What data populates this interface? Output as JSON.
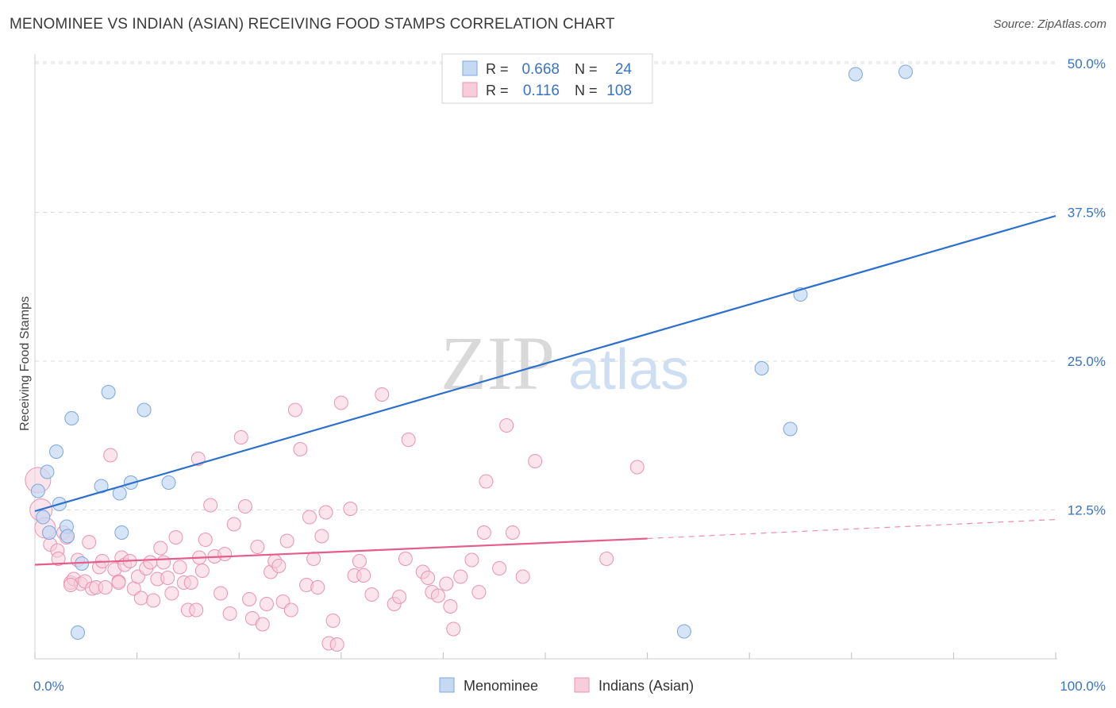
{
  "title": "MENOMINEE VS INDIAN (ASIAN) RECEIVING FOOD STAMPS CORRELATION CHART",
  "source": "Source: ZipAtlas.com",
  "watermark": {
    "zip": "ZIP",
    "atlas": "atlas"
  },
  "colors": {
    "blue_fill": "#c5d9f3",
    "blue_stroke": "#7ea6dc",
    "blue_line": "#2c6fcd",
    "pink_fill": "#f7cddb",
    "pink_stroke": "#e994b2",
    "pink_line": "#e45d8c",
    "tick_label": "#3a72c4",
    "grid": "#dcdcdc"
  },
  "legend": {
    "rows": [
      {
        "r_label": "R =",
        "r_value": "0.668",
        "n_label": "N =",
        "n_value": "24"
      },
      {
        "r_label": "R =",
        "r_value": "0.116",
        "n_label": "N =",
        "n_value": "108"
      }
    ]
  },
  "bottom_legend": [
    "Menominee",
    "Indians (Asian)"
  ],
  "chart_data": {
    "type": "scatter",
    "title": "MENOMINEE VS INDIAN (ASIAN) RECEIVING FOOD STAMPS CORRELATION CHART",
    "xlabel": "",
    "ylabel": "Receiving Food Stamps",
    "xlim": [
      0,
      100
    ],
    "ylim": [
      0,
      50
    ],
    "x_tick_labels": [
      "0.0%",
      "100.0%"
    ],
    "y_ticks": [
      12.5,
      25.0,
      37.5,
      50.0
    ],
    "y_tick_labels": [
      "12.5%",
      "25.0%",
      "37.5%",
      "50.0%"
    ],
    "grid": true,
    "legend_position": "top-center",
    "series": [
      {
        "name": "Menominee",
        "r": 0.668,
        "n": 24,
        "trend": {
          "x": [
            0,
            100
          ],
          "y": [
            12.4,
            37.2
          ],
          "dashed_after": null
        },
        "points": [
          [
            0.3,
            14.1
          ],
          [
            1.2,
            15.7
          ],
          [
            0.8,
            11.9
          ],
          [
            2.1,
            17.4
          ],
          [
            3.6,
            20.2
          ],
          [
            2.4,
            13.0
          ],
          [
            3.1,
            11.1
          ],
          [
            3.2,
            10.3
          ],
          [
            7.2,
            22.4
          ],
          [
            10.7,
            20.9
          ],
          [
            6.5,
            14.5
          ],
          [
            8.3,
            13.9
          ],
          [
            9.4,
            14.8
          ],
          [
            13.1,
            14.8
          ],
          [
            8.5,
            10.6
          ],
          [
            1.4,
            10.6
          ],
          [
            4.6,
            8.0
          ],
          [
            4.2,
            2.2
          ],
          [
            75.0,
            30.6
          ],
          [
            71.2,
            24.4
          ],
          [
            74.0,
            19.3
          ],
          [
            80.4,
            49.1
          ],
          [
            85.3,
            49.3
          ],
          [
            63.6,
            2.3
          ]
        ]
      },
      {
        "name": "Indians (Asian)",
        "r": 0.116,
        "n": 108,
        "trend": {
          "x": [
            0,
            60
          ],
          "y": [
            7.9,
            10.1
          ],
          "dashed_to": [
            100,
            11.7
          ]
        },
        "points": [
          [
            0.3,
            15.0
          ],
          [
            0.6,
            12.5
          ],
          [
            1.0,
            11.0
          ],
          [
            1.5,
            9.6
          ],
          [
            2.2,
            9.1
          ],
          [
            2.3,
            8.4
          ],
          [
            2.8,
            10.6
          ],
          [
            3.1,
            10.2
          ],
          [
            3.5,
            6.4
          ],
          [
            3.8,
            6.7
          ],
          [
            4.2,
            8.3
          ],
          [
            4.5,
            6.3
          ],
          [
            4.9,
            6.5
          ],
          [
            5.3,
            9.8
          ],
          [
            5.6,
            5.9
          ],
          [
            6.0,
            6.0
          ],
          [
            6.3,
            7.7
          ],
          [
            6.6,
            8.2
          ],
          [
            7.4,
            17.1
          ],
          [
            7.8,
            7.5
          ],
          [
            8.2,
            6.5
          ],
          [
            8.5,
            8.5
          ],
          [
            8.8,
            7.9
          ],
          [
            9.3,
            8.2
          ],
          [
            9.7,
            5.9
          ],
          [
            10.1,
            6.9
          ],
          [
            10.4,
            5.1
          ],
          [
            10.9,
            7.6
          ],
          [
            11.3,
            8.1
          ],
          [
            11.6,
            4.9
          ],
          [
            12.0,
            6.7
          ],
          [
            12.3,
            9.3
          ],
          [
            12.6,
            8.1
          ],
          [
            13.0,
            6.8
          ],
          [
            13.4,
            5.5
          ],
          [
            13.8,
            10.2
          ],
          [
            14.2,
            7.7
          ],
          [
            14.6,
            6.4
          ],
          [
            15.0,
            4.1
          ],
          [
            15.3,
            6.4
          ],
          [
            15.8,
            4.1
          ],
          [
            16.1,
            8.5
          ],
          [
            16.4,
            7.4
          ],
          [
            16.7,
            10.0
          ],
          [
            17.2,
            12.9
          ],
          [
            17.6,
            8.6
          ],
          [
            18.2,
            5.5
          ],
          [
            18.6,
            8.8
          ],
          [
            19.1,
            3.8
          ],
          [
            19.5,
            11.3
          ],
          [
            20.2,
            18.6
          ],
          [
            20.6,
            12.8
          ],
          [
            21.0,
            5.0
          ],
          [
            21.3,
            3.4
          ],
          [
            21.8,
            9.4
          ],
          [
            22.3,
            2.9
          ],
          [
            22.7,
            4.6
          ],
          [
            23.1,
            7.3
          ],
          [
            23.5,
            8.2
          ],
          [
            23.9,
            7.8
          ],
          [
            24.3,
            4.8
          ],
          [
            24.7,
            9.9
          ],
          [
            25.1,
            4.1
          ],
          [
            25.5,
            20.9
          ],
          [
            26.0,
            17.6
          ],
          [
            26.6,
            6.2
          ],
          [
            26.9,
            11.9
          ],
          [
            27.3,
            8.4
          ],
          [
            27.7,
            6.0
          ],
          [
            28.1,
            10.3
          ],
          [
            28.5,
            12.3
          ],
          [
            28.8,
            1.3
          ],
          [
            29.2,
            3.2
          ],
          [
            29.6,
            1.2
          ],
          [
            30.0,
            21.5
          ],
          [
            30.9,
            12.6
          ],
          [
            31.3,
            7.0
          ],
          [
            31.8,
            8.2
          ],
          [
            32.2,
            7.0
          ],
          [
            33.0,
            5.4
          ],
          [
            34.0,
            22.2
          ],
          [
            35.2,
            4.6
          ],
          [
            35.7,
            5.2
          ],
          [
            36.3,
            8.4
          ],
          [
            36.6,
            18.4
          ],
          [
            38.0,
            7.3
          ],
          [
            38.5,
            6.8
          ],
          [
            38.9,
            5.6
          ],
          [
            39.5,
            5.3
          ],
          [
            40.3,
            6.3
          ],
          [
            40.7,
            4.4
          ],
          [
            41.0,
            2.5
          ],
          [
            41.7,
            6.9
          ],
          [
            42.8,
            8.3
          ],
          [
            43.5,
            5.6
          ],
          [
            44.2,
            14.9
          ],
          [
            44.0,
            10.6
          ],
          [
            45.5,
            7.6
          ],
          [
            46.8,
            10.6
          ],
          [
            46.2,
            19.6
          ],
          [
            47.8,
            6.9
          ],
          [
            49.0,
            16.6
          ],
          [
            56.0,
            8.4
          ],
          [
            59.0,
            16.1
          ],
          [
            3.5,
            6.2
          ],
          [
            6.9,
            6.0
          ],
          [
            8.2,
            6.4
          ],
          [
            16.0,
            16.8
          ]
        ]
      }
    ]
  }
}
